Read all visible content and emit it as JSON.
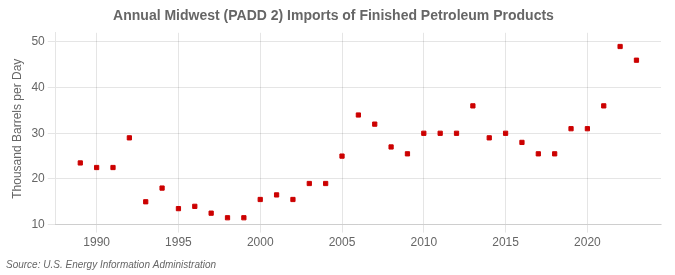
{
  "chart_data": {
    "type": "scatter",
    "title": "Annual Midwest (PADD 2) Imports of Finished Petroleum Products",
    "ylabel": "Thousand Barrels per Day",
    "source": "Source: U.S. Energy Information Administration",
    "x": [
      1989,
      1990,
      1991,
      1992,
      1993,
      1994,
      1995,
      1996,
      1997,
      1998,
      1999,
      2000,
      2001,
      2002,
      2003,
      2004,
      2005,
      2006,
      2007,
      2008,
      2009,
      2010,
      2011,
      2012,
      2013,
      2014,
      2015,
      2016,
      2017,
      2018,
      2019,
      2020,
      2021,
      2022,
      2023
    ],
    "values": [
      23.5,
      22.5,
      22.5,
      29.0,
      15.0,
      18.0,
      13.5,
      14.0,
      12.5,
      11.5,
      11.5,
      15.5,
      16.5,
      15.5,
      19.0,
      19.0,
      25.0,
      34.0,
      32.0,
      27.0,
      25.5,
      30.0,
      30.0,
      30.0,
      36.0,
      29.0,
      30.0,
      28.0,
      25.5,
      25.5,
      31.0,
      31.0,
      36.0,
      49.0,
      46.0
    ],
    "color": "#cc0000",
    "marker": "square",
    "xlim": [
      1987.5,
      2024.5
    ],
    "ylim": [
      10,
      52
    ],
    "xticks": [
      1990,
      1995,
      2000,
      2005,
      2010,
      2015,
      2020
    ],
    "yticks": [
      10,
      20,
      30,
      40,
      50
    ],
    "grid": true
  }
}
